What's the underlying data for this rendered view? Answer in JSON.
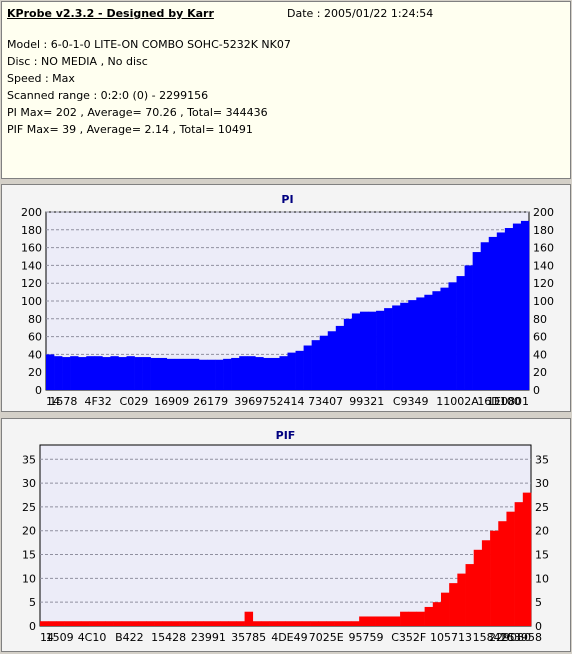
{
  "header": {
    "title": "KProbe v2.3.2 - Designed by Karr",
    "date": "Date : 2005/01/22 1:24:54",
    "lines": [
      "Model : 6-0-1-0 LITE-ON COMBO SOHC-5232K NK07",
      "Disc : NO MEDIA , No disc",
      "Speed : Max",
      "Scanned range : 0:2:0 (0) - 2299156",
      "PI Max= 202 , Average= 70.26 , Total= 344436",
      "PIF Max= 39 , Average= 2.14 , Total= 10491"
    ]
  },
  "chart_data": [
    {
      "type": "bar",
      "title": "PI",
      "color": "#0000ff",
      "ylim": [
        0,
        200
      ],
      "y_ticks": [
        0,
        20,
        40,
        60,
        80,
        100,
        120,
        140,
        160,
        180,
        200
      ],
      "grid": true,
      "x_tick_labels": [
        "14",
        "1578",
        "4F32",
        "C029",
        "16909",
        "26179",
        "39697",
        "52414",
        "73407",
        "99321",
        "C9349",
        "11002A",
        "16D100",
        "1E0801"
      ],
      "x_tick_positions": [
        0,
        0.036,
        0.108,
        0.182,
        0.26,
        0.341,
        0.426,
        0.499,
        0.579,
        0.664,
        0.755,
        0.852,
        0.938,
        1.0
      ],
      "series": [
        {
          "values": [
            40,
            38,
            37,
            38,
            37,
            38,
            38,
            37,
            38,
            37,
            38,
            37,
            37,
            36,
            36,
            35,
            35,
            35,
            35,
            34,
            34,
            34,
            35,
            36,
            38,
            38,
            37,
            36,
            36,
            38,
            42,
            44,
            50,
            56,
            61,
            66,
            72,
            80,
            86,
            88,
            88,
            89,
            92,
            95,
            98,
            101,
            104,
            107,
            111,
            115,
            121,
            128,
            140,
            155,
            166,
            172,
            177,
            182,
            187,
            190
          ]
        }
      ]
    },
    {
      "type": "bar",
      "title": "PIF",
      "color": "#ff0000",
      "ylim": [
        0,
        38
      ],
      "y_ticks": [
        0,
        5,
        10,
        15,
        20,
        25,
        30,
        35
      ],
      "grid": true,
      "x_tick_labels": [
        "14",
        "1509",
        "4C10",
        "B422",
        "15428",
        "23991",
        "35785",
        "4DE49",
        "7025E",
        "95759",
        "C352F",
        "105713",
        "158425",
        "1C3958",
        "229080"
      ],
      "x_tick_positions": [
        0,
        0.04,
        0.106,
        0.182,
        0.262,
        0.343,
        0.425,
        0.508,
        0.583,
        0.664,
        0.751,
        0.837,
        0.924,
        0.979,
        1.0
      ],
      "series": [
        {
          "values": [
            1,
            1,
            1,
            1,
            1,
            1,
            1,
            1,
            1,
            1,
            1,
            1,
            1,
            1,
            1,
            1,
            1,
            1,
            1,
            1,
            1,
            1,
            1,
            1,
            1,
            3,
            1,
            1,
            1,
            1,
            1,
            1,
            1,
            1,
            1,
            1,
            1,
            1,
            1,
            2,
            2,
            2,
            2,
            2,
            3,
            3,
            3,
            4,
            5,
            7,
            9,
            11,
            13,
            16,
            18,
            20,
            22,
            24,
            26,
            28
          ]
        }
      ]
    }
  ]
}
